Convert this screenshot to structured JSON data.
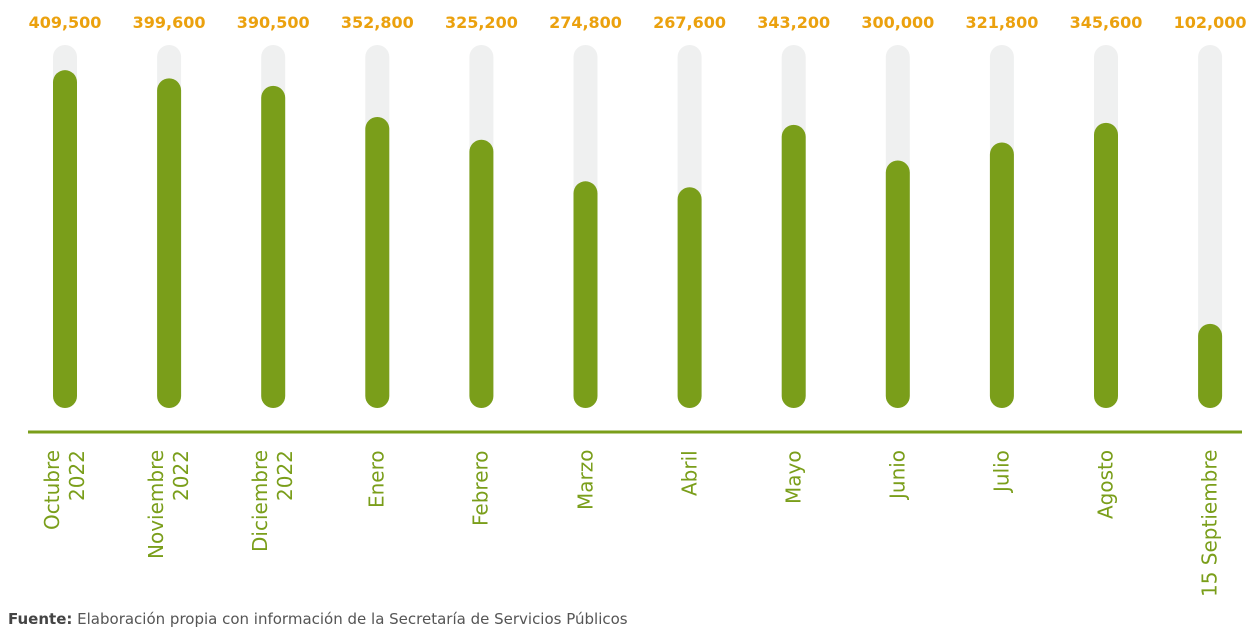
{
  "chart_data": {
    "type": "bar",
    "categories": [
      "Octubre\n2022",
      "Noviembre\n2022",
      "Diciembre\n2022",
      "Enero",
      "Febrero",
      "Marzo",
      "Abril",
      "Mayo",
      "Junio",
      "Julio",
      "Agosto",
      "15 Septiembre"
    ],
    "values": [
      409500,
      399600,
      390500,
      352800,
      325200,
      274800,
      267600,
      343200,
      300000,
      321800,
      345600,
      102000
    ],
    "value_labels": [
      "409,500",
      "399,600",
      "390,500",
      "352,800",
      "325,200",
      "274,800",
      "267,600",
      "343,200",
      "300,000",
      "321,800",
      "345,600",
      "102,000"
    ],
    "color": "#7a9e1a",
    "ylim": [
      0,
      440000
    ]
  },
  "source_label": "Fuente:",
  "source": "Elaboración propia con información de la Secretaría de Servicios Públicos"
}
